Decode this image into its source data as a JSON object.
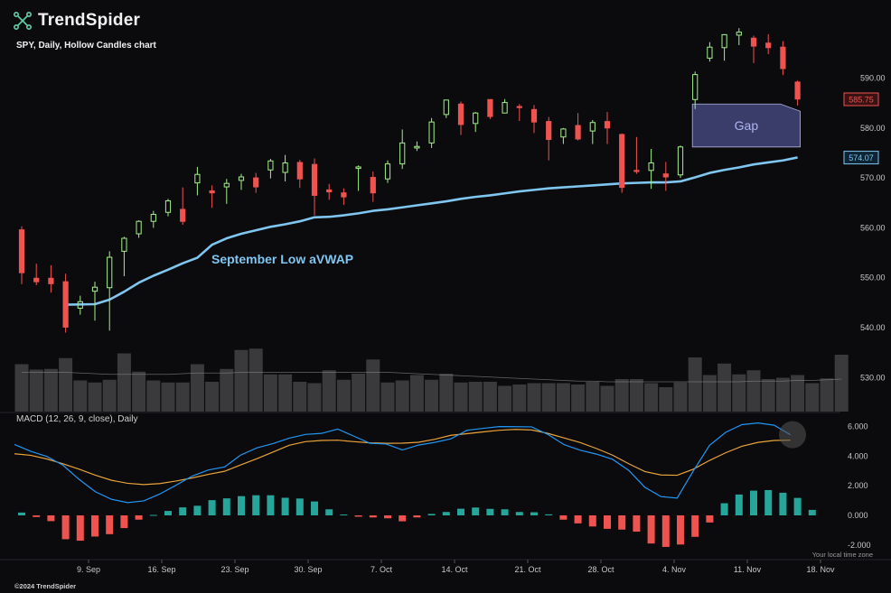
{
  "brand": {
    "name": "TrendSpider",
    "icon": "trendspider-logo-icon"
  },
  "chart_title": "SPY, Daily, Hollow Candles chart",
  "macd_title": "MACD (12, 26, 9, close), Daily",
  "timezone_note": "Your local time zone",
  "copyright": "©2024 TrendSpider",
  "colors": {
    "background": "#0b0b0d",
    "up": "#a4f08a",
    "down": "#ef5350",
    "vwap": "#7fc6f0",
    "macd_line": "#2196f3",
    "signal_line": "#e8a33a",
    "hist_up": "#26a69a",
    "hist_down": "#ef5350",
    "volume": "#3a3a3c",
    "gap_fill": "#3d3f6e"
  },
  "annotations": {
    "vwap_label": "September Low aVWAP",
    "gap_label": "Gap"
  },
  "chart_data": [
    {
      "type": "candlestick",
      "style": "hollow",
      "title": "SPY, Daily, Hollow Candles chart",
      "x_tick_labels": [
        "9. Sep",
        "16. Sep",
        "23. Sep",
        "30. Sep",
        "7. Oct",
        "14. Oct",
        "21. Oct",
        "28. Oct",
        "4. Nov",
        "11. Nov",
        "18. Nov"
      ],
      "x_tick_index": [
        5,
        10,
        15,
        20,
        25,
        30,
        35,
        40,
        45,
        50,
        55
      ],
      "y_ticks": [
        530,
        540,
        550,
        560,
        570,
        580,
        590
      ],
      "ylim": [
        525.9,
        606.5
      ],
      "last_price": "585.75",
      "vwap_value": "574.07",
      "grid": false,
      "candles": [
        {
          "o": 559.6,
          "h": 560.3,
          "l": 548.7,
          "c": 551.0
        },
        {
          "o": 549.9,
          "h": 552.8,
          "l": 548.5,
          "c": 549.2
        },
        {
          "o": 549.9,
          "h": 552.5,
          "l": 547.0,
          "c": 548.8
        },
        {
          "o": 549.2,
          "h": 550.8,
          "l": 539.0,
          "c": 540.1
        },
        {
          "o": 543.9,
          "h": 546.4,
          "l": 542.6,
          "c": 545.2
        },
        {
          "o": 547.3,
          "h": 549.2,
          "l": 541.4,
          "c": 548.1
        },
        {
          "o": 548.0,
          "h": 555.3,
          "l": 539.4,
          "c": 554.1
        },
        {
          "o": 555.3,
          "h": 558.2,
          "l": 550.3,
          "c": 557.9
        },
        {
          "o": 558.8,
          "h": 561.5,
          "l": 558.0,
          "c": 561.3
        },
        {
          "o": 561.3,
          "h": 563.4,
          "l": 560.0,
          "c": 562.7
        },
        {
          "o": 563.1,
          "h": 565.8,
          "l": 562.3,
          "c": 565.4
        },
        {
          "o": 563.7,
          "h": 568.1,
          "l": 560.6,
          "c": 561.3
        },
        {
          "o": 569.0,
          "h": 572.2,
          "l": 566.5,
          "c": 570.7
        },
        {
          "o": 567.4,
          "h": 568.5,
          "l": 564.0,
          "c": 567.0
        },
        {
          "o": 568.2,
          "h": 569.8,
          "l": 564.8,
          "c": 568.9
        },
        {
          "o": 569.5,
          "h": 570.8,
          "l": 567.6,
          "c": 570.2
        },
        {
          "o": 570.0,
          "h": 571.0,
          "l": 567.0,
          "c": 568.2
        },
        {
          "o": 571.6,
          "h": 573.8,
          "l": 569.9,
          "c": 573.4
        },
        {
          "o": 571.1,
          "h": 574.6,
          "l": 569.3,
          "c": 573.0
        },
        {
          "o": 573.1,
          "h": 573.6,
          "l": 568.0,
          "c": 569.8
        },
        {
          "o": 572.7,
          "h": 573.9,
          "l": 562.5,
          "c": 566.5
        },
        {
          "o": 567.6,
          "h": 568.8,
          "l": 565.6,
          "c": 567.2
        },
        {
          "o": 567.0,
          "h": 567.9,
          "l": 564.6,
          "c": 566.2
        },
        {
          "o": 571.9,
          "h": 572.5,
          "l": 567.4,
          "c": 572.2
        },
        {
          "o": 570.1,
          "h": 571.3,
          "l": 565.2,
          "c": 567.0
        },
        {
          "o": 569.8,
          "h": 573.5,
          "l": 569.0,
          "c": 572.8
        },
        {
          "o": 572.8,
          "h": 579.7,
          "l": 571.8,
          "c": 577.0
        },
        {
          "o": 576.0,
          "h": 577.3,
          "l": 575.4,
          "c": 576.3
        },
        {
          "o": 577.0,
          "h": 582.0,
          "l": 576.0,
          "c": 581.2
        },
        {
          "o": 582.7,
          "h": 585.6,
          "l": 582.0,
          "c": 585.6
        },
        {
          "o": 584.8,
          "h": 585.3,
          "l": 578.6,
          "c": 580.7
        },
        {
          "o": 580.9,
          "h": 583.2,
          "l": 579.2,
          "c": 583.0
        },
        {
          "o": 585.7,
          "h": 585.7,
          "l": 581.8,
          "c": 582.3
        },
        {
          "o": 583.0,
          "h": 585.8,
          "l": 583.0,
          "c": 585.1
        },
        {
          "o": 584.3,
          "h": 584.8,
          "l": 581.4,
          "c": 584.1
        },
        {
          "o": 583.7,
          "h": 584.6,
          "l": 579.0,
          "c": 581.2
        },
        {
          "o": 581.3,
          "h": 582.2,
          "l": 573.5,
          "c": 577.7
        },
        {
          "o": 578.2,
          "h": 580.0,
          "l": 576.8,
          "c": 579.8
        },
        {
          "o": 580.5,
          "h": 583.0,
          "l": 577.5,
          "c": 577.8
        },
        {
          "o": 579.4,
          "h": 581.6,
          "l": 576.8,
          "c": 581.1
        },
        {
          "o": 581.3,
          "h": 583.2,
          "l": 576.8,
          "c": 580.0
        },
        {
          "o": 578.7,
          "h": 578.9,
          "l": 567.0,
          "c": 568.1
        },
        {
          "o": 571.5,
          "h": 578.2,
          "l": 570.8,
          "c": 571.4
        },
        {
          "o": 571.5,
          "h": 575.8,
          "l": 567.8,
          "c": 573.0
        },
        {
          "o": 570.8,
          "h": 573.2,
          "l": 567.4,
          "c": 570.2
        },
        {
          "o": 570.6,
          "h": 576.5,
          "l": 570.0,
          "c": 576.2
        },
        {
          "o": 585.7,
          "h": 591.3,
          "l": 583.8,
          "c": 590.7
        },
        {
          "o": 594.0,
          "h": 597.2,
          "l": 593.3,
          "c": 596.2
        },
        {
          "o": 596.1,
          "h": 598.8,
          "l": 593.5,
          "c": 598.7
        },
        {
          "o": 598.6,
          "h": 600.0,
          "l": 596.6,
          "c": 599.2
        },
        {
          "o": 598.0,
          "h": 598.5,
          "l": 593.0,
          "c": 596.4
        },
        {
          "o": 597.0,
          "h": 598.8,
          "l": 594.8,
          "c": 596.1
        },
        {
          "o": 596.2,
          "h": 597.4,
          "l": 590.6,
          "c": 591.9
        },
        {
          "o": 589.2,
          "h": 589.5,
          "l": 584.5,
          "c": 585.8
        }
      ],
      "vwap": [
        {
          "i": 3,
          "v": 544.6
        },
        {
          "i": 5,
          "v": 544.7
        },
        {
          "i": 6,
          "v": 545.6
        },
        {
          "i": 7,
          "v": 547.2
        },
        {
          "i": 8,
          "v": 549.0
        },
        {
          "i": 9,
          "v": 550.4
        },
        {
          "i": 10,
          "v": 551.6
        },
        {
          "i": 11,
          "v": 552.9
        },
        {
          "i": 12,
          "v": 554.0
        },
        {
          "i": 13,
          "v": 556.6
        },
        {
          "i": 14,
          "v": 557.9
        },
        {
          "i": 15,
          "v": 558.8
        },
        {
          "i": 16,
          "v": 559.5
        },
        {
          "i": 17,
          "v": 560.2
        },
        {
          "i": 18,
          "v": 560.7
        },
        {
          "i": 19,
          "v": 561.3
        },
        {
          "i": 20,
          "v": 562.1
        },
        {
          "i": 21,
          "v": 562.2
        },
        {
          "i": 22,
          "v": 562.5
        },
        {
          "i": 23,
          "v": 562.9
        },
        {
          "i": 24,
          "v": 563.4
        },
        {
          "i": 25,
          "v": 563.7
        },
        {
          "i": 26,
          "v": 564.1
        },
        {
          "i": 27,
          "v": 564.5
        },
        {
          "i": 28,
          "v": 564.9
        },
        {
          "i": 29,
          "v": 565.3
        },
        {
          "i": 30,
          "v": 565.8
        },
        {
          "i": 31,
          "v": 566.2
        },
        {
          "i": 32,
          "v": 566.5
        },
        {
          "i": 33,
          "v": 566.9
        },
        {
          "i": 34,
          "v": 567.3
        },
        {
          "i": 35,
          "v": 567.6
        },
        {
          "i": 36,
          "v": 567.9
        },
        {
          "i": 37,
          "v": 568.1
        },
        {
          "i": 38,
          "v": 568.3
        },
        {
          "i": 39,
          "v": 568.5
        },
        {
          "i": 40,
          "v": 568.7
        },
        {
          "i": 41,
          "v": 568.9
        },
        {
          "i": 42,
          "v": 569.0
        },
        {
          "i": 43,
          "v": 569.1
        },
        {
          "i": 44,
          "v": 569.1
        },
        {
          "i": 45,
          "v": 569.3
        },
        {
          "i": 46,
          "v": 570.1
        },
        {
          "i": 47,
          "v": 571.0
        },
        {
          "i": 48,
          "v": 571.6
        },
        {
          "i": 49,
          "v": 572.1
        },
        {
          "i": 50,
          "v": 572.7
        },
        {
          "i": 51,
          "v": 573.1
        },
        {
          "i": 52,
          "v": 573.5
        },
        {
          "i": 53,
          "v": 574.1
        }
      ],
      "gap": {
        "from_index": 46,
        "to_index": 53,
        "top": 584.8,
        "bottom": 576.2,
        "label": "Gap"
      }
    },
    {
      "type": "bar",
      "title": "Volume",
      "values": [
        0.7,
        0.62,
        0.63,
        0.79,
        0.46,
        0.43,
        0.47,
        0.86,
        0.59,
        0.46,
        0.43,
        0.43,
        0.7,
        0.44,
        0.63,
        0.91,
        0.93,
        0.55,
        0.55,
        0.44,
        0.42,
        0.61,
        0.47,
        0.56,
        0.77,
        0.43,
        0.46,
        0.54,
        0.47,
        0.56,
        0.43,
        0.44,
        0.44,
        0.38,
        0.4,
        0.42,
        0.42,
        0.42,
        0.4,
        0.44,
        0.38,
        0.48,
        0.48,
        0.42,
        0.36,
        0.43,
        0.8,
        0.54,
        0.71,
        0.55,
        0.61,
        0.48,
        0.5,
        0.54,
        0.42,
        0.49,
        0.84
      ],
      "avg": [
        0.58,
        0.58,
        0.58,
        0.58,
        0.57,
        0.56,
        0.55,
        0.55,
        0.55,
        0.55,
        0.55,
        0.56,
        0.57,
        0.57,
        0.57,
        0.58,
        0.58,
        0.58,
        0.58,
        0.58,
        0.58,
        0.58,
        0.58,
        0.58,
        0.58,
        0.58,
        0.57,
        0.56,
        0.55,
        0.54,
        0.53,
        0.52,
        0.51,
        0.5,
        0.49,
        0.48,
        0.47,
        0.46,
        0.45,
        0.45,
        0.44,
        0.44,
        0.44,
        0.44,
        0.44,
        0.44,
        0.44,
        0.44,
        0.44,
        0.44,
        0.45,
        0.45,
        0.45,
        0.46,
        0.46,
        0.47,
        0.48
      ]
    },
    {
      "type": "line",
      "title": "MACD (12, 26, 9, close), Daily",
      "y_ticks": [
        "6.000",
        "4.000",
        "2.000",
        "0.000",
        "-2.000"
      ],
      "y_tick_values": [
        6,
        4,
        2,
        0,
        -2
      ],
      "ylim": [
        -2.84,
        6.98
      ],
      "series": [
        {
          "values": [
            4.79,
            4.33,
            3.98,
            3.39,
            2.43,
            1.6,
            1.09,
            0.86,
            0.98,
            1.45,
            2.04,
            2.66,
            3.07,
            3.27,
            4.08,
            4.56,
            4.85,
            5.22,
            5.47,
            5.54,
            5.83,
            5.35,
            4.87,
            4.82,
            4.42,
            4.75,
            4.93,
            5.17,
            5.75,
            5.88,
            6.0,
            5.99,
            5.98,
            5.47,
            4.78,
            4.4,
            4.14,
            3.79,
            3.04,
            1.9,
            1.27,
            1.17,
            3.01,
            4.73,
            5.61,
            6.13,
            6.24,
            6.09,
            5.45
          ]
        },
        {
          "values": [
            4.16,
            4.06,
            3.81,
            3.49,
            3.12,
            2.72,
            2.37,
            2.17,
            2.08,
            2.15,
            2.32,
            2.53,
            2.77,
            2.98,
            3.41,
            3.83,
            4.28,
            4.74,
            4.98,
            5.06,
            5.08,
            4.98,
            4.9,
            4.87,
            4.88,
            4.94,
            5.14,
            5.41,
            5.52,
            5.64,
            5.75,
            5.81,
            5.77,
            5.54,
            5.23,
            4.92,
            4.52,
            4.07,
            3.49,
            2.96,
            2.73,
            2.71,
            3.12,
            3.71,
            4.23,
            4.67,
            4.93,
            5.06,
            5.08
          ]
        },
        {
          "values": [
            0.19,
            -0.11,
            -0.39,
            -1.61,
            -1.71,
            -1.43,
            -1.27,
            -0.86,
            -0.29,
            0.03,
            0.3,
            0.54,
            0.65,
            1.03,
            1.15,
            1.3,
            1.36,
            1.36,
            1.19,
            1.14,
            0.94,
            0.41,
            0.06,
            -0.09,
            -0.14,
            -0.2,
            -0.4,
            -0.14,
            0.1,
            0.23,
            0.45,
            0.53,
            0.44,
            0.41,
            0.23,
            0.21,
            0.07,
            -0.29,
            -0.54,
            -0.75,
            -0.91,
            -0.96,
            -1.1,
            -1.9,
            -2.13,
            -1.97,
            -1.45,
            -0.48,
            0.82,
            1.41,
            1.67,
            1.71,
            1.53,
            1.18,
            0.37
          ]
        }
      ]
    }
  ]
}
